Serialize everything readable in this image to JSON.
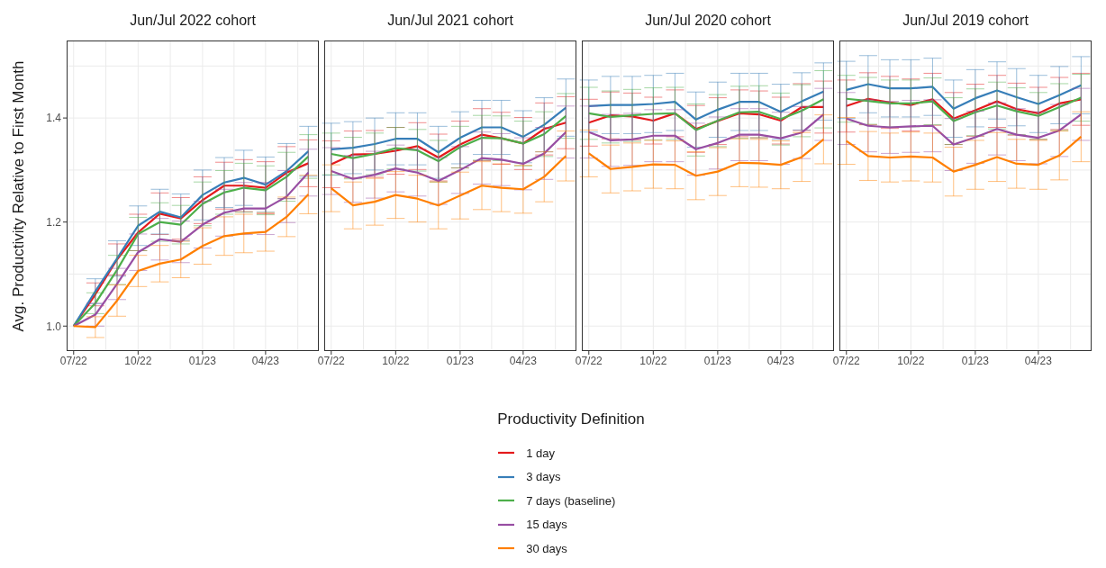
{
  "chart_data": [
    {
      "type": "line",
      "title": "Jun/Jul 2022 cohort",
      "ylabel": "Avg. Productivity Relative to First Month",
      "legend": "bottom",
      "legend_title": "Productivity Definition",
      "grid": true,
      "x": [
        "2022-07",
        "2022-08",
        "2022-09",
        "2022-10",
        "2022-11",
        "2022-12",
        "2023-01",
        "2023-02",
        "2023-03",
        "2023-04",
        "2023-05",
        "2023-06"
      ],
      "xlim": [
        "2022-06-21",
        "2023-06-16"
      ],
      "xticks": [
        {
          "value": "2022-07",
          "label": "07/22"
        },
        {
          "value": "2022-10",
          "label": "10/22"
        },
        {
          "value": "2023-01",
          "label": "01/23"
        },
        {
          "value": "2023-04",
          "label": "04/23"
        }
      ],
      "ylim": [
        0.952,
        1.549
      ],
      "yticks": [
        {
          "value": 1.0,
          "label": "1.0"
        },
        {
          "value": 1.2,
          "label": "1.2"
        },
        {
          "value": 1.4,
          "label": "1.4"
        }
      ],
      "series": [
        {
          "name": "1 day",
          "color": "#e41a1c",
          "values": [
            1.0,
            1.061,
            1.128,
            1.18,
            1.216,
            1.207,
            1.242,
            1.27,
            1.27,
            1.266,
            1.295,
            1.313
          ],
          "errors": [
            null,
            0.022,
            0.03,
            0.035,
            0.04,
            0.04,
            0.045,
            0.045,
            0.05,
            0.05,
            0.05,
            0.045
          ]
        },
        {
          "name": "3 days",
          "color": "#377eb8",
          "values": [
            1.0,
            1.067,
            1.13,
            1.193,
            1.22,
            1.209,
            1.252,
            1.276,
            1.285,
            1.272,
            1.298,
            1.336
          ],
          "errors": [
            null,
            0.024,
            0.034,
            0.038,
            0.043,
            0.045,
            0.048,
            0.048,
            0.053,
            0.053,
            0.053,
            0.048
          ]
        },
        {
          "name": "7 days (baseline)",
          "color": "#4daf4a",
          "values": [
            1.0,
            1.044,
            1.108,
            1.177,
            1.2,
            1.195,
            1.235,
            1.257,
            1.266,
            1.261,
            1.287,
            1.326
          ],
          "errors": [
            null,
            0.02,
            0.028,
            0.032,
            0.037,
            0.037,
            0.042,
            0.042,
            0.047,
            0.047,
            0.047,
            0.042
          ]
        },
        {
          "name": "15 days",
          "color": "#984ea3",
          "values": [
            1.0,
            1.022,
            1.081,
            1.142,
            1.167,
            1.162,
            1.195,
            1.218,
            1.226,
            1.226,
            1.249,
            1.295
          ],
          "errors": [
            null,
            0.022,
            0.03,
            0.035,
            0.04,
            0.04,
            0.045,
            0.045,
            0.05,
            0.05,
            0.05,
            0.045
          ]
        },
        {
          "name": "30 days",
          "color": "#ff7f00",
          "values": [
            1.0,
            0.998,
            1.049,
            1.106,
            1.12,
            1.128,
            1.154,
            1.173,
            1.178,
            1.181,
            1.21,
            1.253
          ],
          "errors": [
            null,
            0.02,
            0.03,
            0.03,
            0.035,
            0.035,
            0.035,
            0.037,
            0.037,
            0.037,
            0.038,
            0.037
          ]
        }
      ]
    },
    {
      "type": "line",
      "title": "Jun/Jul 2021 cohort",
      "grid": true,
      "tick_labels": "x",
      "x": [
        "2022-07",
        "2022-08",
        "2022-09",
        "2022-10",
        "2022-11",
        "2022-12",
        "2023-01",
        "2023-02",
        "2023-03",
        "2023-04",
        "2023-05",
        "2023-06"
      ],
      "xlim": [
        "2022-06-21",
        "2023-06-16"
      ],
      "xticks": [
        {
          "value": "2022-07",
          "label": "07/22"
        },
        {
          "value": "2022-10",
          "label": "10/22"
        },
        {
          "value": "2023-01",
          "label": "01/23"
        },
        {
          "value": "2023-04",
          "label": "04/23"
        }
      ],
      "ylim": [
        0.952,
        1.549
      ],
      "yticks": [
        1,
        1.2,
        1.4
      ],
      "series": [
        {
          "color": "#e41a1c",
          "values": [
            1.311,
            1.33,
            1.331,
            1.337,
            1.346,
            1.324,
            1.349,
            1.368,
            1.361,
            1.351,
            1.379,
            1.391
          ],
          "errors": [
            0.045,
            0.045,
            0.045,
            0.045,
            0.045,
            0.045,
            0.045,
            0.05,
            0.05,
            0.05,
            0.05,
            0.05
          ]
        },
        {
          "color": "#377eb8",
          "values": [
            1.34,
            1.343,
            1.35,
            1.36,
            1.36,
            1.334,
            1.362,
            1.382,
            1.382,
            1.364,
            1.387,
            1.42
          ],
          "errors": [
            0.05,
            0.05,
            0.05,
            0.05,
            0.05,
            0.05,
            0.05,
            0.052,
            0.052,
            0.05,
            0.052,
            0.055
          ]
        },
        {
          "color": "#4daf4a",
          "values": [
            1.331,
            1.323,
            1.331,
            1.342,
            1.338,
            1.317,
            1.344,
            1.362,
            1.361,
            1.351,
            1.369,
            1.404
          ],
          "errors": [
            0.04,
            0.04,
            0.04,
            0.04,
            0.04,
            0.04,
            0.04,
            0.043,
            0.043,
            0.043,
            0.043,
            0.043
          ]
        },
        {
          "color": "#984ea3",
          "values": [
            1.298,
            1.283,
            1.291,
            1.303,
            1.295,
            1.279,
            1.3,
            1.323,
            1.32,
            1.312,
            1.332,
            1.373
          ],
          "errors": [
            0.045,
            0.045,
            0.045,
            0.045,
            0.045,
            0.045,
            0.045,
            0.05,
            0.05,
            0.05,
            0.05,
            0.05
          ]
        },
        {
          "color": "#ff7f00",
          "values": [
            1.265,
            1.232,
            1.239,
            1.252,
            1.245,
            1.232,
            1.251,
            1.27,
            1.266,
            1.263,
            1.287,
            1.327
          ],
          "errors": [
            0.045,
            0.045,
            0.045,
            0.045,
            0.045,
            0.045,
            0.045,
            0.046,
            0.046,
            0.046,
            0.048,
            0.048
          ]
        }
      ]
    },
    {
      "type": "line",
      "title": "Jun/Jul 2020 cohort",
      "grid": true,
      "tick_labels": "x",
      "x": [
        "2022-07",
        "2022-08",
        "2022-09",
        "2022-10",
        "2022-11",
        "2022-12",
        "2023-01",
        "2023-02",
        "2023-03",
        "2023-04",
        "2023-05",
        "2023-06"
      ],
      "xlim": [
        "2022-06-21",
        "2023-06-16"
      ],
      "xticks": [
        {
          "value": "2022-07",
          "label": "07/22"
        },
        {
          "value": "2022-10",
          "label": "10/22"
        },
        {
          "value": "2023-01",
          "label": "01/23"
        },
        {
          "value": "2023-04",
          "label": "04/23"
        }
      ],
      "ylim": [
        0.952,
        1.549
      ],
      "yticks": [
        1,
        1.2,
        1.4
      ],
      "series": [
        {
          "color": "#e41a1c",
          "values": [
            1.391,
            1.405,
            1.403,
            1.395,
            1.409,
            1.379,
            1.394,
            1.409,
            1.407,
            1.395,
            1.421,
            1.421
          ],
          "errors": [
            0.045,
            0.045,
            0.045,
            0.045,
            0.045,
            0.045,
            0.045,
            0.045,
            0.045,
            0.045,
            0.045,
            0.05
          ]
        },
        {
          "color": "#377eb8",
          "values": [
            1.423,
            1.425,
            1.425,
            1.427,
            1.431,
            1.397,
            1.416,
            1.431,
            1.431,
            1.412,
            1.432,
            1.451
          ],
          "errors": [
            0.05,
            0.055,
            0.055,
            0.055,
            0.055,
            0.053,
            0.053,
            0.055,
            0.055,
            0.053,
            0.055,
            0.055
          ]
        },
        {
          "color": "#4daf4a",
          "values": [
            1.409,
            1.402,
            1.405,
            1.408,
            1.409,
            1.377,
            1.395,
            1.411,
            1.412,
            1.398,
            1.414,
            1.436
          ],
          "errors": [
            0.05,
            0.05,
            0.05,
            0.05,
            0.05,
            0.05,
            0.05,
            0.05,
            0.05,
            0.05,
            0.05,
            0.055
          ]
        },
        {
          "color": "#984ea3",
          "values": [
            1.373,
            1.357,
            1.359,
            1.366,
            1.366,
            1.34,
            1.352,
            1.368,
            1.368,
            1.361,
            1.372,
            1.407
          ],
          "errors": [
            0.05,
            0.05,
            0.05,
            0.05,
            0.05,
            0.05,
            0.05,
            0.05,
            0.05,
            0.05,
            0.05,
            0.05
          ]
        },
        {
          "color": "#ff7f00",
          "values": [
            1.332,
            1.302,
            1.306,
            1.311,
            1.31,
            1.289,
            1.297,
            1.314,
            1.313,
            1.31,
            1.325,
            1.359
          ],
          "errors": [
            0.045,
            0.046,
            0.046,
            0.046,
            0.046,
            0.046,
            0.046,
            0.046,
            0.046,
            0.046,
            0.047,
            0.047
          ]
        }
      ]
    },
    {
      "type": "line",
      "title": "Jun/Jul 2019 cohort",
      "grid": true,
      "tick_labels": "x",
      "x": [
        "2022-07",
        "2022-08",
        "2022-09",
        "2022-10",
        "2022-11",
        "2022-12",
        "2023-01",
        "2023-02",
        "2023-03",
        "2023-04",
        "2023-05",
        "2023-06"
      ],
      "xlim": [
        "2022-06-21",
        "2023-06-16"
      ],
      "xticks": [
        {
          "value": "2022-07",
          "label": "07/22"
        },
        {
          "value": "2022-10",
          "label": "10/22"
        },
        {
          "value": "2023-01",
          "label": "01/23"
        },
        {
          "value": "2023-04",
          "label": "04/23"
        }
      ],
      "ylim": [
        0.952,
        1.549
      ],
      "yticks": [
        1,
        1.2,
        1.4
      ],
      "series": [
        {
          "color": "#e41a1c",
          "values": [
            1.423,
            1.437,
            1.43,
            1.425,
            1.436,
            1.399,
            1.415,
            1.432,
            1.417,
            1.409,
            1.428,
            1.436
          ],
          "errors": [
            0.05,
            0.05,
            0.05,
            0.05,
            0.05,
            0.05,
            0.05,
            0.05,
            0.05,
            0.05,
            0.05,
            0.05
          ]
        },
        {
          "color": "#377eb8",
          "values": [
            1.454,
            1.465,
            1.457,
            1.457,
            1.46,
            1.418,
            1.438,
            1.453,
            1.44,
            1.427,
            1.444,
            1.463
          ],
          "errors": [
            0.055,
            0.055,
            0.055,
            0.055,
            0.055,
            0.055,
            0.055,
            0.055,
            0.055,
            0.055,
            0.055,
            0.055
          ]
        },
        {
          "color": "#4daf4a",
          "values": [
            1.437,
            1.433,
            1.428,
            1.428,
            1.432,
            1.394,
            1.411,
            1.424,
            1.413,
            1.404,
            1.421,
            1.439
          ],
          "errors": [
            0.045,
            0.045,
            0.045,
            0.045,
            0.045,
            0.045,
            0.045,
            0.045,
            0.045,
            0.045,
            0.045,
            0.045
          ]
        },
        {
          "color": "#984ea3",
          "values": [
            1.399,
            1.385,
            1.382,
            1.384,
            1.385,
            1.349,
            1.363,
            1.379,
            1.368,
            1.362,
            1.376,
            1.407
          ],
          "errors": [
            0.05,
            0.05,
            0.05,
            0.05,
            0.05,
            0.05,
            0.05,
            0.05,
            0.05,
            0.05,
            0.05,
            0.05
          ]
        },
        {
          "color": "#ff7f00",
          "values": [
            1.356,
            1.327,
            1.324,
            1.326,
            1.324,
            1.297,
            1.31,
            1.325,
            1.312,
            1.31,
            1.328,
            1.364
          ],
          "errors": [
            0.045,
            0.047,
            0.047,
            0.047,
            0.047,
            0.047,
            0.047,
            0.047,
            0.047,
            0.047,
            0.047,
            0.048
          ]
        }
      ]
    }
  ]
}
